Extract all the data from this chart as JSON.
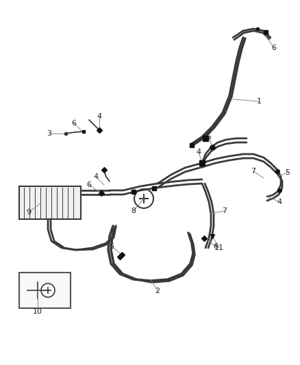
{
  "bg_color": "#ffffff",
  "line_color": "#3a3a3a",
  "label_color": "#222222",
  "fig_width": 4.38,
  "fig_height": 5.33,
  "dpi": 100,
  "lw_hose": 2.0,
  "lw_thin": 1.3
}
